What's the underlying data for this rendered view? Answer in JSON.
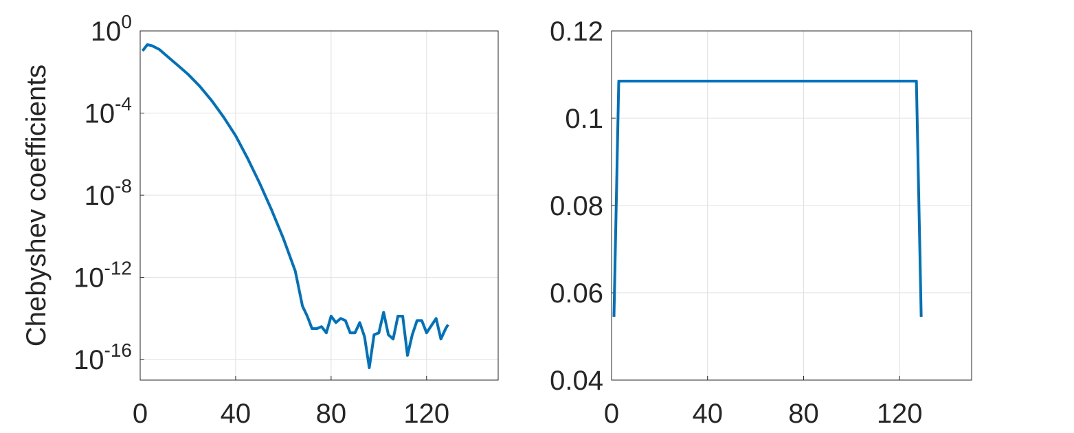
{
  "chart_data": [
    {
      "type": "line",
      "ylabel": "Chebyshev coefficients",
      "yscale": "log",
      "grid": true,
      "xlim": [
        0,
        150
      ],
      "xticks": [
        0,
        40,
        80,
        120
      ],
      "ylim": [
        1e-17,
        1
      ],
      "yticks": [
        {
          "value": 1e-16,
          "label": "10",
          "exponent": "-16"
        },
        {
          "value": 1e-12,
          "label": "10",
          "exponent": "-12"
        },
        {
          "value": 1e-08,
          "label": "10",
          "exponent": "-8"
        },
        {
          "value": 0.0001,
          "label": "10",
          "exponent": "-4"
        },
        {
          "value": 1,
          "label": "10",
          "exponent": "0"
        }
      ],
      "series": [
        {
          "color": "#0072bd",
          "x": [
            1,
            3,
            5,
            8,
            12,
            16,
            20,
            25,
            30,
            35,
            40,
            45,
            50,
            55,
            60,
            65,
            68,
            70,
            72,
            74,
            76,
            78,
            80,
            82,
            84,
            86,
            88,
            90,
            92,
            94,
            96,
            98,
            100,
            102,
            104,
            106,
            108,
            110,
            112,
            114,
            116,
            118,
            120,
            124,
            126,
            128,
            129
          ],
          "values": [
            0.107,
            0.214,
            0.19,
            0.126,
            0.05,
            0.02,
            0.0079,
            0.002,
            0.0004,
            6.3e-05,
            7.9e-06,
            6.3e-07,
            4e-08,
            2e-09,
            7.9e-11,
            2e-12,
            4e-14,
            1.3e-14,
            3.2e-15,
            3.2e-15,
            4e-15,
            2e-15,
            1.3e-14,
            6.3e-15,
            1e-14,
            7.9e-15,
            2e-15,
            2e-15,
            6.3e-15,
            1.3e-15,
            4e-17,
            1.6e-15,
            2e-15,
            2e-14,
            1.6e-15,
            1e-15,
            1.3e-14,
            1.3e-14,
            1.6e-16,
            1.6e-15,
            7.9e-15,
            7.9e-15,
            2e-15,
            1e-14,
            1e-15,
            3.2e-15,
            5e-15
          ]
        }
      ]
    },
    {
      "type": "line",
      "yscale": "linear",
      "grid": true,
      "xlim": [
        0,
        150
      ],
      "xticks": [
        0,
        40,
        80,
        120
      ],
      "ylim": [
        0.04,
        0.12
      ],
      "yticks": [
        0.04,
        0.06,
        0.08,
        0.1,
        0.12
      ],
      "series": [
        {
          "color": "#0072bd",
          "x": [
            1,
            3,
            127,
            129
          ],
          "values": [
            0.0545,
            0.1085,
            0.1085,
            0.0545
          ]
        }
      ]
    }
  ]
}
